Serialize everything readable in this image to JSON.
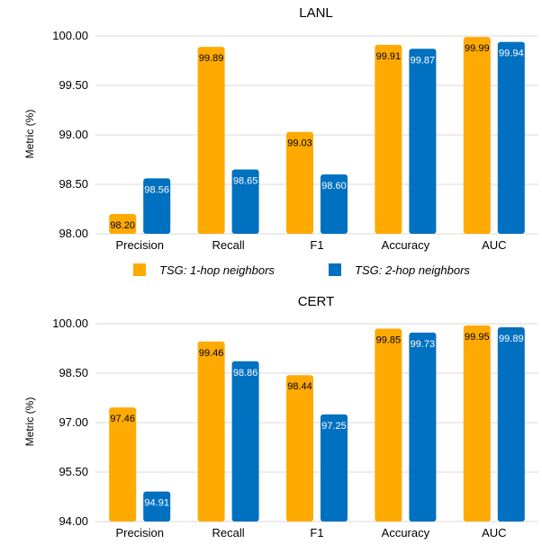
{
  "colors": {
    "series1": "#FFAA00",
    "series2": "#0070C0",
    "grid": "#d9d9d9"
  },
  "legend": {
    "item1": "TSG: 1-hop neighbors",
    "item2": "TSG: 2-hop neighbors"
  },
  "chart_data": [
    {
      "type": "bar",
      "title": "LANL",
      "ylabel": "Metric (%)",
      "ylim": [
        98.0,
        100.0
      ],
      "yticks": [
        "98.00",
        "98.50",
        "99.00",
        "99.50",
        "100.00"
      ],
      "grid": true,
      "categories": [
        "Precision",
        "Recall",
        "F1",
        "Accuracy",
        "AUC"
      ],
      "series": [
        {
          "name": "TSG: 1-hop neighbors",
          "values": [
            98.2,
            99.89,
            99.03,
            99.91,
            99.99
          ],
          "labels": [
            "98.20",
            "99.89",
            "99.03",
            "99.91",
            "99.99"
          ]
        },
        {
          "name": "TSG: 2-hop neighbors",
          "values": [
            98.56,
            98.65,
            98.6,
            99.87,
            99.94
          ],
          "labels": [
            "98.56",
            "98.65",
            "98.60",
            "99.87",
            "99.94"
          ]
        }
      ]
    },
    {
      "type": "bar",
      "title": "CERT",
      "ylabel": "Metric (%)",
      "ylim": [
        94.0,
        100.0
      ],
      "yticks": [
        "94.00",
        "95.50",
        "97.00",
        "98.50",
        "100.00"
      ],
      "grid": true,
      "categories": [
        "Precision",
        "Recall",
        "F1",
        "Accuracy",
        "AUC"
      ],
      "series": [
        {
          "name": "TSG: 1-hop neighbors",
          "values": [
            97.46,
            99.46,
            98.44,
            99.85,
            99.95
          ],
          "labels": [
            "97.46",
            "99.46",
            "98.44",
            "99.85",
            "99.95"
          ]
        },
        {
          "name": "TSG: 2-hop neighbors",
          "values": [
            94.91,
            98.86,
            97.25,
            99.73,
            99.89
          ],
          "labels": [
            "94.91",
            "98.86",
            "97.25",
            "99.73",
            "99.89"
          ]
        }
      ]
    }
  ]
}
